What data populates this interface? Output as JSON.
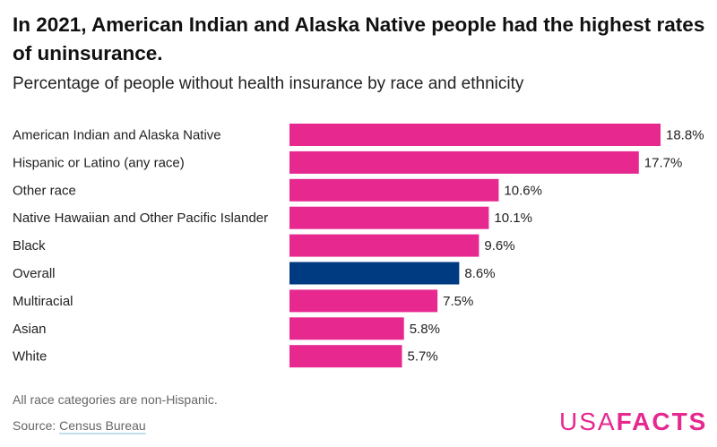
{
  "title": "In 2021, American Indian and Alaska Native people had the highest rates of uninsurance.",
  "subtitle": "Percentage of people without health insurance by race and ethnicity",
  "note": "All race categories are non-Hispanic.",
  "source_label": "Source:",
  "source_link": "Census Bureau",
  "logo": {
    "light": "USA",
    "bold": "FACTS"
  },
  "colors": {
    "bar": "#E6288F",
    "highlight": "#003A80"
  },
  "chart_data": {
    "type": "bar",
    "orientation": "horizontal",
    "categories": [
      "American Indian and Alaska Native",
      "Hispanic or Latino (any race)",
      "Other race",
      "Native Hawaiian and Other Pacific Islander",
      "Black",
      "Overall",
      "Multiracial",
      "Asian",
      "White"
    ],
    "values": [
      18.8,
      17.7,
      10.6,
      10.1,
      9.6,
      8.6,
      7.5,
      5.8,
      5.7
    ],
    "data_labels": [
      "18.8%",
      "17.7%",
      "10.6%",
      "10.1%",
      "9.6%",
      "8.6%",
      "7.5%",
      "5.8%",
      "5.7%"
    ],
    "highlighted_category": "Overall",
    "unit": "%",
    "xlim": [
      0,
      18.8
    ],
    "grid": false,
    "legend": "none"
  }
}
